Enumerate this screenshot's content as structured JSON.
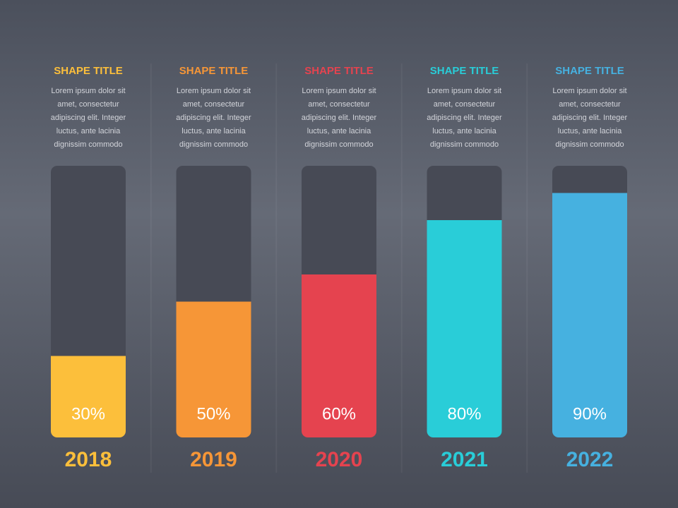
{
  "chart_data": {
    "type": "bar",
    "categories": [
      "2018",
      "2019",
      "2020",
      "2021",
      "2022"
    ],
    "values": [
      30,
      50,
      60,
      80,
      90
    ],
    "value_labels": [
      "30%",
      "50%",
      "60%",
      "80%",
      "90%"
    ],
    "colors": [
      "#fcbf3b",
      "#f69637",
      "#e5434f",
      "#29cdd8",
      "#46b1e0"
    ],
    "titles": [
      "SHAPE TITLE",
      "SHAPE TITLE",
      "SHAPE TITLE",
      "SHAPE TITLE",
      "SHAPE TITLE"
    ],
    "descriptions": [
      [
        "Lorem ipsum dolor sit",
        "amet, consectetur",
        "adipiscing elit. Integer",
        "luctus, ante lacinia",
        "dignissim commodo"
      ],
      [
        "Lorem ipsum dolor sit",
        "amet, consectetur",
        "adipiscing elit. Integer",
        "luctus, ante lacinia",
        "dignissim commodo"
      ],
      [
        "Lorem ipsum dolor sit",
        "amet, consectetur",
        "adipiscing elit. Integer",
        "luctus, ante lacinia",
        "dignissim commodo"
      ],
      [
        "Lorem ipsum dolor sit",
        "amet, consectetur",
        "adipiscing elit. Integer",
        "luctus, ante lacinia",
        "dignissim commodo"
      ],
      [
        "Lorem ipsum dolor sit",
        "amet, consectetur",
        "adipiscing elit. Integer",
        "luctus, ante lacinia",
        "dignissim commodo"
      ]
    ],
    "ylim": [
      0,
      100
    ]
  }
}
